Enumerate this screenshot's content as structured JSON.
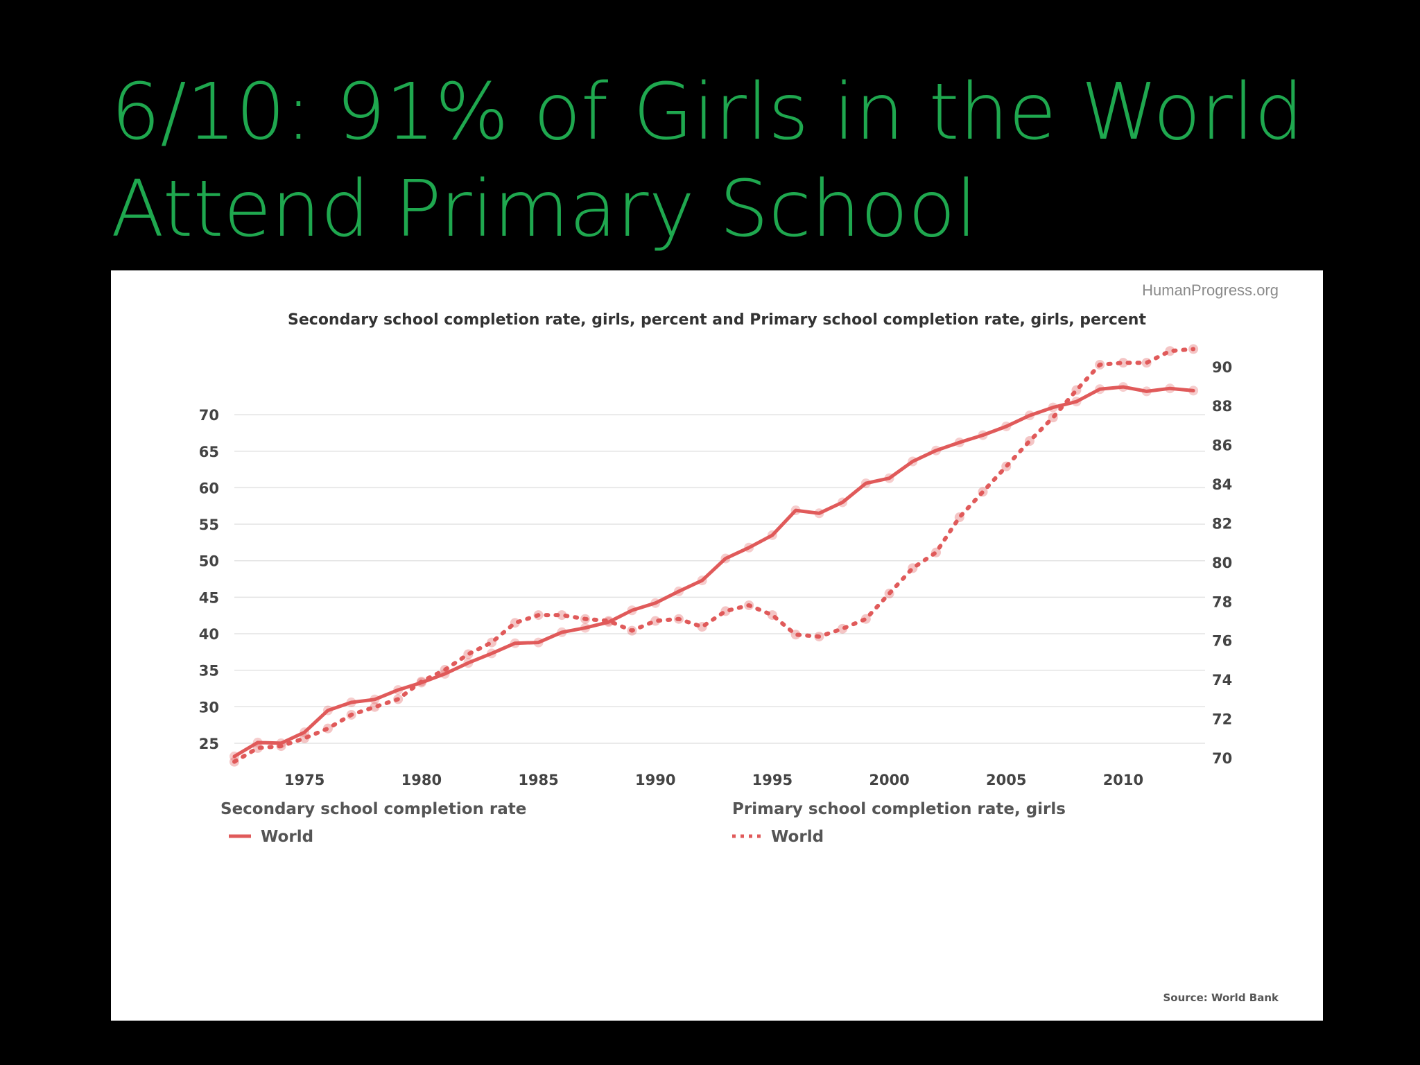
{
  "slide": {
    "title_line1": "6/10: 91% of Girls in the World",
    "title_line2": "Attend Primary School",
    "title_color": "#1fa84f",
    "background": "#000000"
  },
  "chart_data": {
    "type": "line",
    "brand": "HumanProgress.org",
    "title": "Secondary school completion rate, girls, percent and Primary school completion rate, girls, percent",
    "source": "Source: World Bank",
    "x_ticks": [
      1975,
      1980,
      1985,
      1990,
      1995,
      2000,
      2005,
      2010
    ],
    "xlim": [
      1972,
      2013.5
    ],
    "y_left": {
      "ticks": [
        25,
        30,
        35,
        40,
        45,
        50,
        55,
        60,
        65,
        70
      ],
      "lim": [
        23,
        74
      ]
    },
    "y_right": {
      "ticks": [
        70,
        72,
        74,
        76,
        78,
        80,
        82,
        84,
        86,
        88,
        90
      ],
      "lim": [
        70,
        90.1
      ]
    },
    "grid": true,
    "legend_placement": "bottom",
    "series_color": "#e05a5a",
    "series": [
      {
        "group": "Secondary school completion rate",
        "name": "World",
        "axis": "left",
        "style": "solid",
        "x": [
          1972,
          1973,
          1974,
          1975,
          1976,
          1977,
          1978,
          1979,
          1980,
          1981,
          1982,
          1983,
          1984,
          1985,
          1986,
          1987,
          1988,
          1989,
          1990,
          1991,
          1992,
          1993,
          1994,
          1995,
          1996,
          1997,
          1998,
          1999,
          2000,
          2001,
          2002,
          2003,
          2004,
          2005,
          2006,
          2007,
          2008,
          2009,
          2010,
          2011,
          2012,
          2013
        ],
        "values": [
          23.2,
          25.1,
          25.0,
          26.5,
          29.5,
          30.6,
          31.0,
          32.3,
          33.3,
          34.5,
          36.0,
          37.3,
          38.7,
          38.8,
          40.2,
          40.8,
          41.6,
          43.2,
          44.2,
          45.8,
          47.3,
          50.3,
          51.8,
          53.5,
          56.9,
          56.5,
          58.0,
          60.6,
          61.3,
          63.6,
          65.1,
          66.2,
          67.2,
          68.4,
          69.9,
          71.0,
          71.8,
          73.5,
          73.8,
          73.2,
          73.6,
          73.3
        ]
      },
      {
        "group": "Primary school completion rate, girls",
        "name": "World",
        "axis": "right",
        "style": "dotted",
        "x": [
          1972,
          1973,
          1974,
          1975,
          1976,
          1977,
          1978,
          1979,
          1980,
          1981,
          1982,
          1983,
          1984,
          1985,
          1986,
          1987,
          1988,
          1989,
          1990,
          1991,
          1992,
          1993,
          1994,
          1995,
          1996,
          1997,
          1998,
          1999,
          2000,
          2001,
          2002,
          2003,
          2004,
          2005,
          2006,
          2007,
          2008,
          2009,
          2010,
          2011,
          2012,
          2013
        ],
        "values": [
          69.8,
          70.5,
          70.6,
          71.0,
          71.5,
          72.2,
          72.6,
          73.0,
          73.9,
          74.5,
          75.3,
          75.9,
          76.9,
          77.3,
          77.3,
          77.1,
          77.0,
          76.5,
          77.0,
          77.1,
          76.7,
          77.5,
          77.8,
          77.3,
          76.3,
          76.2,
          76.6,
          77.1,
          78.4,
          79.7,
          80.5,
          82.3,
          83.6,
          84.9,
          86.2,
          87.4,
          88.8,
          90.1,
          90.2,
          90.2,
          90.8,
          90.9
        ]
      }
    ]
  }
}
